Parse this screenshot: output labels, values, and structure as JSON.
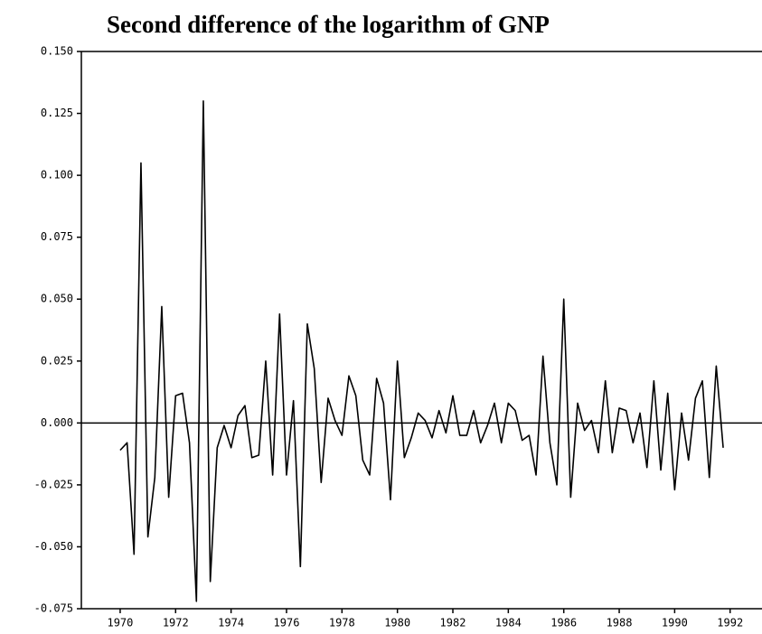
{
  "chart_data": {
    "type": "line",
    "title": "Second difference of the logarithm of GNP",
    "x": [
      1970.0,
      1970.25,
      1970.5,
      1970.75,
      1971.0,
      1971.25,
      1971.5,
      1971.75,
      1972.0,
      1972.25,
      1972.5,
      1972.75,
      1973.0,
      1973.25,
      1973.5,
      1973.75,
      1974.0,
      1974.25,
      1974.5,
      1974.75,
      1975.0,
      1975.25,
      1975.5,
      1975.75,
      1976.0,
      1976.25,
      1976.5,
      1976.75,
      1977.0,
      1977.25,
      1977.5,
      1977.75,
      1978.0,
      1978.25,
      1978.5,
      1978.75,
      1979.0,
      1979.25,
      1979.5,
      1979.75,
      1980.0,
      1980.25,
      1980.5,
      1980.75,
      1981.0,
      1981.25,
      1981.5,
      1981.75,
      1982.0,
      1982.25,
      1982.5,
      1982.75,
      1983.0,
      1983.25,
      1983.5,
      1983.75,
      1984.0,
      1984.25,
      1984.5,
      1984.75,
      1985.0,
      1985.25,
      1985.5,
      1985.75,
      1986.0,
      1986.25,
      1986.5,
      1986.75,
      1987.0,
      1987.25,
      1987.5,
      1987.75,
      1988.0,
      1988.25,
      1988.5,
      1988.75,
      1989.0,
      1989.25,
      1989.5,
      1989.75,
      1990.0,
      1990.25,
      1990.5,
      1990.75,
      1991.0,
      1991.25,
      1991.5,
      1991.75
    ],
    "series": [
      {
        "color": "#000000",
        "values": [
          -0.011,
          -0.008,
          -0.053,
          0.105,
          -0.046,
          -0.022,
          0.047,
          -0.03,
          0.011,
          0.012,
          -0.008,
          -0.072,
          0.13,
          -0.064,
          -0.01,
          -0.001,
          -0.01,
          0.003,
          0.007,
          -0.014,
          -0.013,
          0.025,
          -0.021,
          0.044,
          -0.021,
          0.009,
          -0.058,
          0.04,
          0.022,
          -0.024,
          0.01,
          0.001,
          -0.005,
          0.019,
          0.011,
          -0.015,
          -0.021,
          0.018,
          0.008,
          -0.031,
          0.025,
          -0.014,
          -0.006,
          0.004,
          0.001,
          -0.006,
          0.005,
          -0.004,
          0.011,
          -0.005,
          -0.005,
          0.005,
          -0.008,
          -0.001,
          0.008,
          -0.008,
          0.008,
          0.005,
          -0.007,
          -0.005,
          -0.021,
          0.027,
          -0.008,
          -0.025,
          0.05,
          -0.03,
          0.008,
          -0.003,
          0.001,
          -0.012,
          0.017,
          -0.012,
          0.006,
          0.005,
          -0.008,
          0.004,
          -0.018,
          0.017,
          -0.019,
          0.012,
          -0.027,
          0.004,
          -0.015,
          0.01,
          0.017,
          -0.022,
          0.023,
          -0.01
        ]
      }
    ],
    "xlim": [
      1968.6,
      1993.15
    ],
    "xticks": [
      1970,
      1972,
      1974,
      1976,
      1978,
      1980,
      1982,
      1984,
      1986,
      1988,
      1990,
      1992
    ],
    "ylim": [
      -0.075,
      0.15
    ],
    "yticks": [
      {
        "value": 0.15,
        "label": "0.150"
      },
      {
        "value": 0.125,
        "label": "0.125"
      },
      {
        "value": 0.1,
        "label": "0.100"
      },
      {
        "value": 0.075,
        "label": "0.075"
      },
      {
        "value": 0.05,
        "label": "0.050"
      },
      {
        "value": 0.025,
        "label": "0.025"
      },
      {
        "value": 0,
        "label": "0.000"
      },
      {
        "value": -0.025,
        "label": "-0.025"
      },
      {
        "value": -0.05,
        "label": "-0.050"
      },
      {
        "value": -0.075,
        "label": "-0.075"
      }
    ],
    "zero_line": true,
    "grid": false
  }
}
